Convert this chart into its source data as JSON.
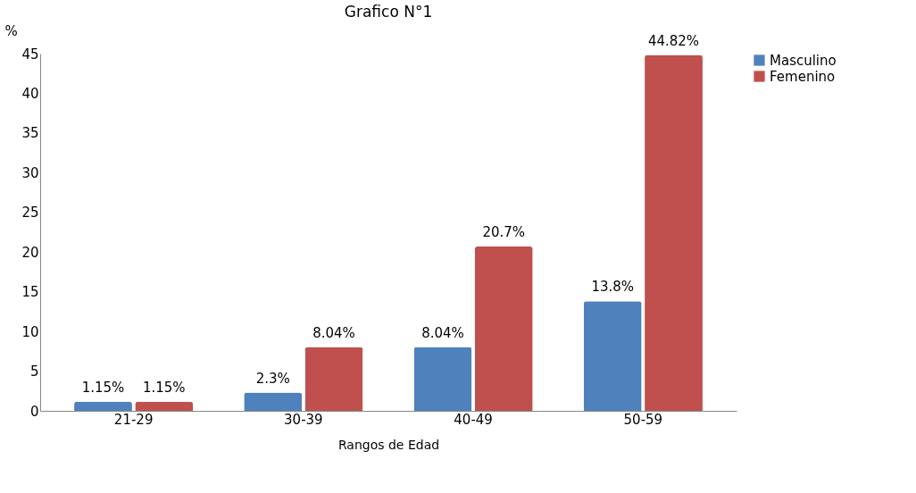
{
  "chart_data": {
    "type": "bar",
    "title": "Grafico N°1",
    "xlabel": "Rangos de Edad",
    "ylabel": "%",
    "categories": [
      "21-29",
      "30-39",
      "40-49",
      "50-59"
    ],
    "series": [
      {
        "name": "Masculino",
        "color": "#4f81bd",
        "values": [
          1.15,
          2.3,
          8.04,
          13.8
        ],
        "value_labels": [
          "1.15%",
          "2.3%",
          "8.04%",
          "13.8%"
        ]
      },
      {
        "name": "Femenino",
        "color": "#c0504d",
        "values": [
          1.15,
          8.04,
          20.7,
          44.82
        ],
        "value_labels": [
          "1.15%",
          "8.04%",
          "20.7%",
          "44.82%"
        ]
      }
    ],
    "ylim": [
      0,
      45
    ],
    "yticks": [
      0,
      5,
      10,
      15,
      20,
      25,
      30,
      35,
      40,
      45
    ],
    "grid": false,
    "legend": "right"
  }
}
